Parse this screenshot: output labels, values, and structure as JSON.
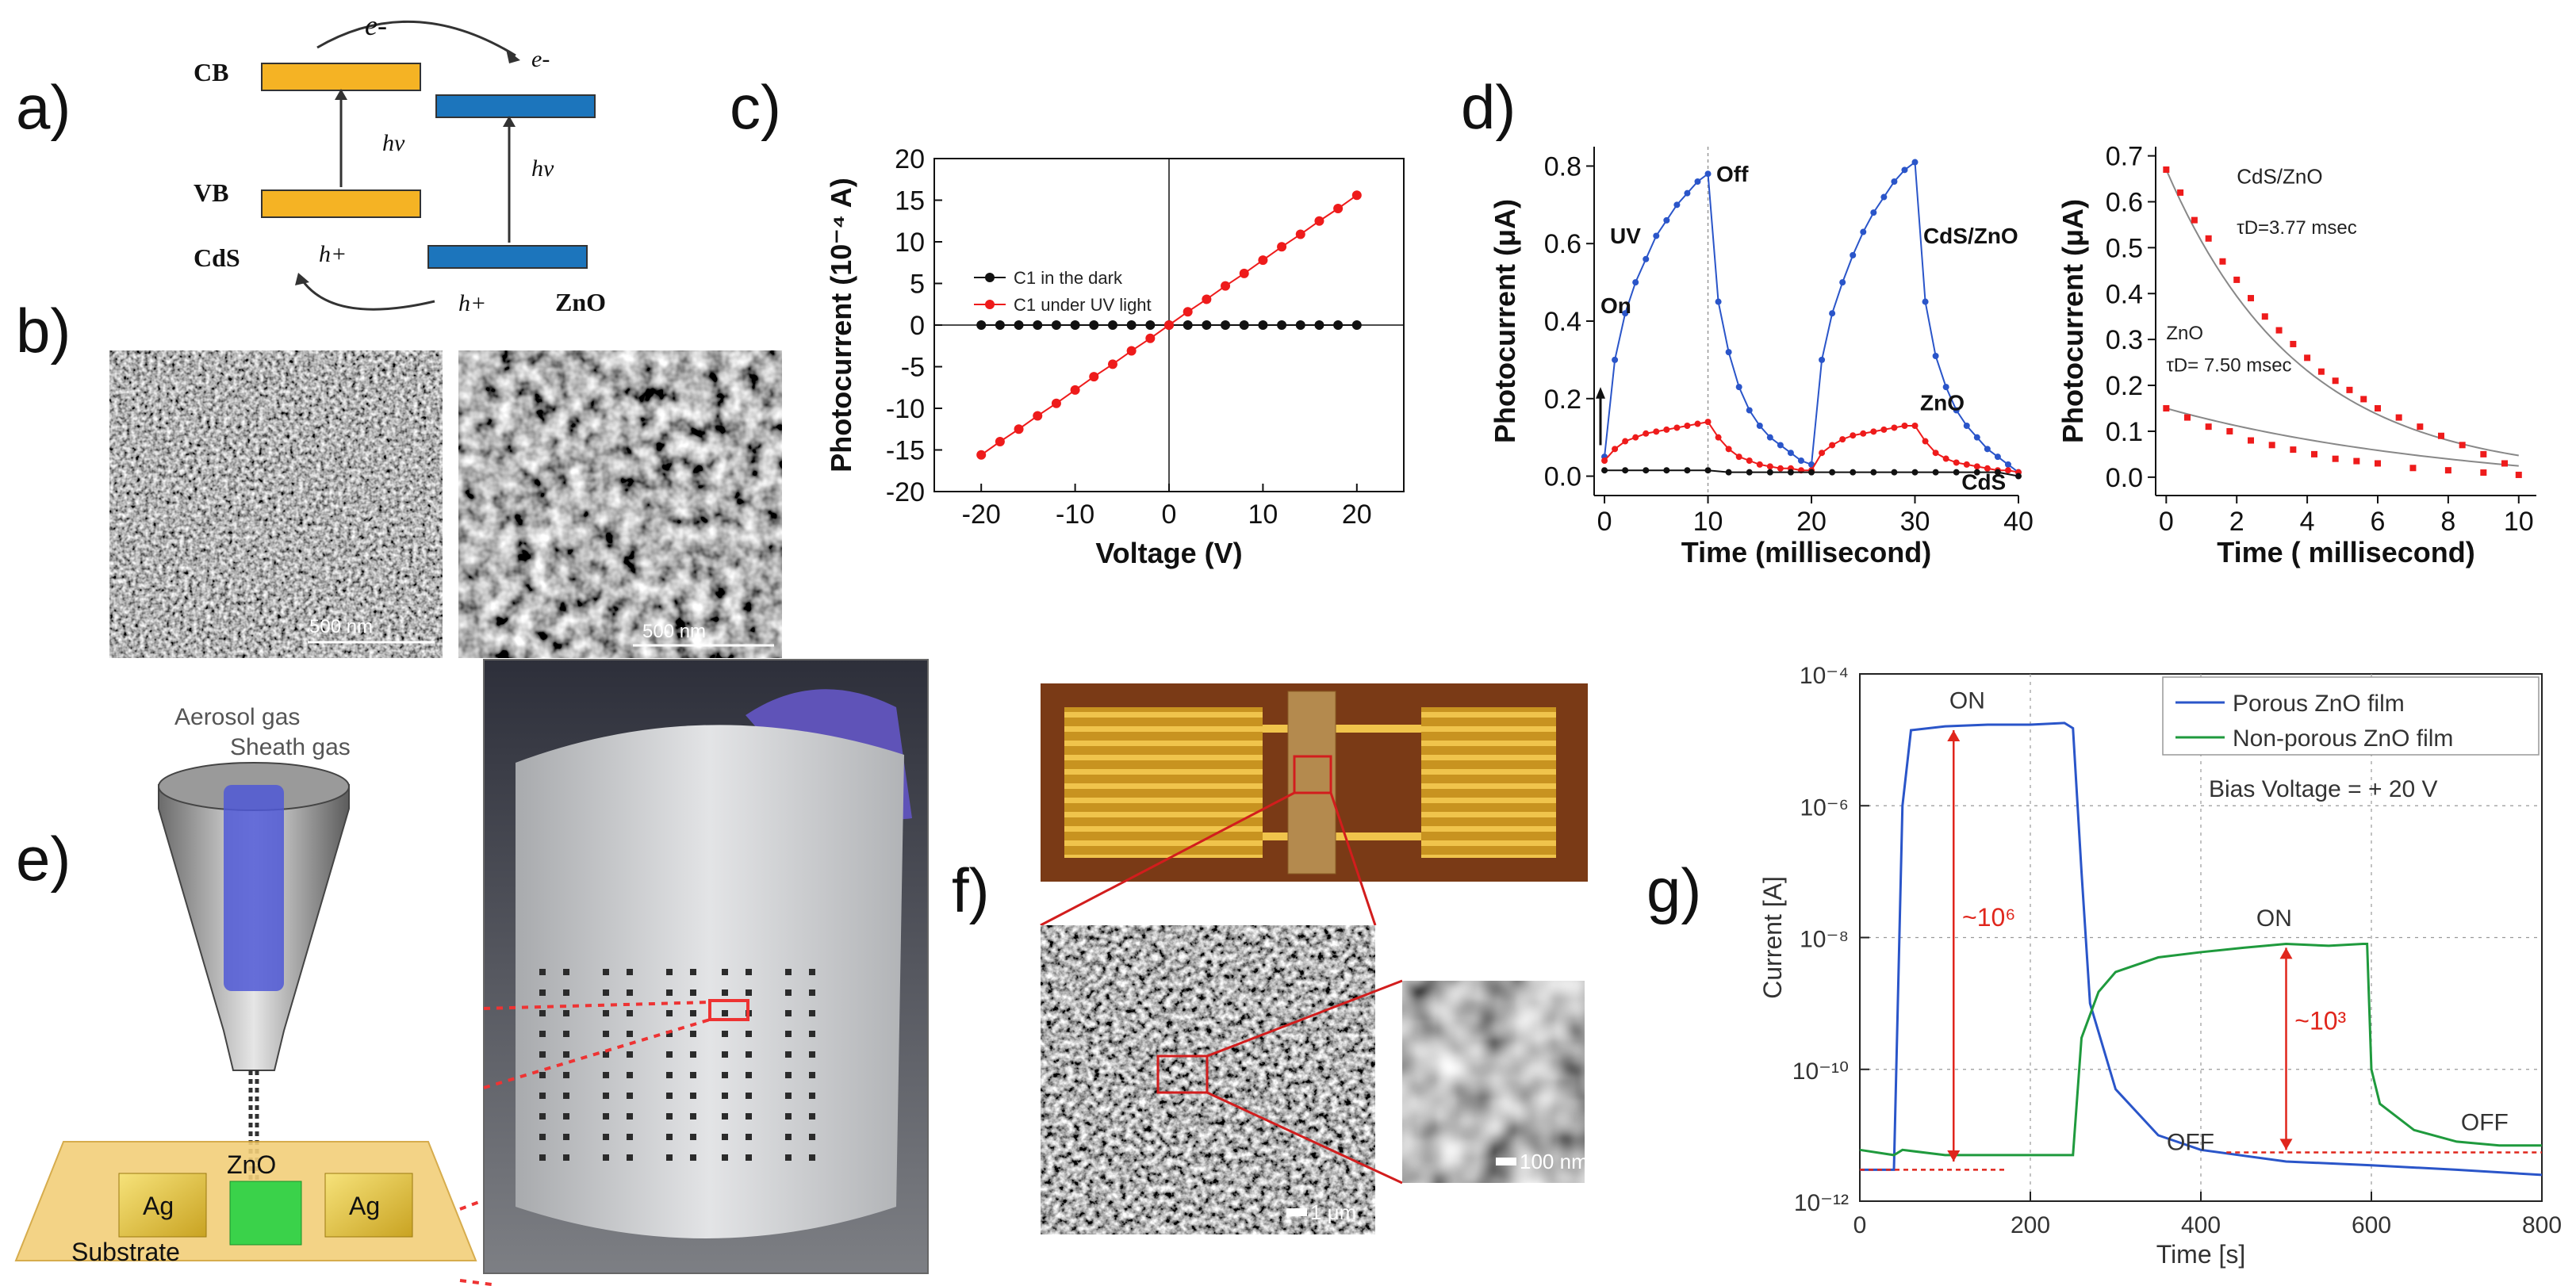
{
  "panels": {
    "a": "a)",
    "b": "b)",
    "c": "c)",
    "d": "d)",
    "e": "e)",
    "f": "f)",
    "g": "g)"
  },
  "panel_a": {
    "cb": "CB",
    "vb": "VB",
    "cds": "CdS",
    "zno": "ZnO",
    "electron_top": "e-",
    "electron_right": "e-",
    "hv_left": "hv",
    "hv_right": "hv",
    "hole_left": "h+",
    "hole_right": "h+"
  },
  "panel_b": {
    "scale_left": "500 nm",
    "scale_right": "500 nm"
  },
  "panel_e": {
    "aerosol": "Aerosol gas",
    "sheath": "Sheath gas",
    "zno": "ZnO",
    "ag_left": "Ag",
    "ag_right": "Ag",
    "substrate": "Substrate"
  },
  "panel_f": {
    "scale_large": "1 μm",
    "scale_small": "100 nm"
  },
  "colors": {
    "dark": "#111111",
    "uv": "#ee1b1b",
    "blue": "#2a55c9",
    "green": "#1f9a3d",
    "red_annot": "#e0261c",
    "cb_orange": "#f5b324",
    "zno_blue": "#1c75bc"
  },
  "chart_data": [
    {
      "id": "c",
      "type": "scatter",
      "xlabel": "Voltage (V)",
      "ylabel": "Photocurrent (10⁻⁴ A)",
      "xlim": [
        -25,
        25
      ],
      "ylim": [
        -20,
        20
      ],
      "xticks": [
        "-20",
        "-10",
        "0",
        "10",
        "20"
      ],
      "yticks": [
        "-20",
        "-15",
        "-10",
        "-5",
        "0",
        "5",
        "10",
        "15",
        "20"
      ],
      "legend_position": "left",
      "series": [
        {
          "name": "C1 in the dark",
          "color": "#111111",
          "x": [
            -20,
            -18,
            -16,
            -14,
            -12,
            -10,
            -8,
            -6,
            -4,
            -2,
            0,
            2,
            4,
            6,
            8,
            10,
            12,
            14,
            16,
            18,
            20
          ],
          "y": [
            0,
            0,
            0,
            0,
            0,
            0,
            0,
            0,
            0,
            0,
            0,
            0,
            0,
            0,
            0,
            0,
            0,
            0,
            0,
            0,
            0
          ]
        },
        {
          "name": "C1 under UV light",
          "color": "#ee1b1b",
          "x": [
            -20,
            -18,
            -16,
            -14,
            -12,
            -10,
            -8,
            -6,
            -4,
            -2,
            0,
            2,
            4,
            6,
            8,
            10,
            12,
            14,
            16,
            18,
            20
          ],
          "y": [
            -15.6,
            -14.0,
            -12.5,
            -10.9,
            -9.4,
            -7.8,
            -6.2,
            -4.7,
            -3.1,
            -1.6,
            0,
            1.6,
            3.1,
            4.7,
            6.2,
            7.8,
            9.4,
            10.9,
            12.5,
            14.0,
            15.6
          ]
        }
      ]
    },
    {
      "id": "d1",
      "type": "line",
      "xlabel": "Time (millisecond)",
      "ylabel": "Photocurrent (μA)",
      "xlim": [
        -1,
        40
      ],
      "ylim": [
        -0.05,
        0.85
      ],
      "xticks": [
        "0",
        "10",
        "20",
        "30",
        "40"
      ],
      "yticks": [
        "0.0",
        "0.2",
        "0.4",
        "0.6",
        "0.8"
      ],
      "annotations": {
        "uv": "UV",
        "on": "On",
        "off": "Off",
        "cds_zno": "CdS/ZnO",
        "zno": "ZnO",
        "cds": "CdS"
      },
      "series": [
        {
          "name": "CdS/ZnO",
          "color": "#2a55c9",
          "x": [
            0,
            1,
            2,
            3,
            4,
            5,
            6,
            7,
            8,
            9,
            10,
            11,
            12,
            13,
            14,
            15,
            16,
            17,
            18,
            19,
            20,
            21,
            22,
            23,
            24,
            25,
            26,
            27,
            28,
            29,
            30,
            31,
            32,
            33,
            34,
            35,
            36,
            37,
            38,
            39,
            40
          ],
          "y": [
            0.05,
            0.3,
            0.42,
            0.5,
            0.56,
            0.62,
            0.66,
            0.7,
            0.73,
            0.76,
            0.78,
            0.45,
            0.32,
            0.23,
            0.17,
            0.13,
            0.1,
            0.08,
            0.06,
            0.04,
            0.03,
            0.3,
            0.42,
            0.5,
            0.57,
            0.63,
            0.68,
            0.72,
            0.76,
            0.79,
            0.81,
            0.45,
            0.31,
            0.23,
            0.17,
            0.13,
            0.1,
            0.07,
            0.05,
            0.03,
            0.01
          ]
        },
        {
          "name": "ZnO",
          "color": "#ee1b1b",
          "x": [
            0,
            1,
            2,
            3,
            4,
            5,
            6,
            7,
            8,
            9,
            10,
            11,
            12,
            13,
            14,
            15,
            16,
            17,
            18,
            19,
            20,
            21,
            22,
            23,
            24,
            25,
            26,
            27,
            28,
            29,
            30,
            31,
            32,
            33,
            34,
            35,
            36,
            37,
            38,
            39,
            40
          ],
          "y": [
            0.04,
            0.07,
            0.09,
            0.1,
            0.11,
            0.115,
            0.12,
            0.125,
            0.13,
            0.135,
            0.14,
            0.1,
            0.07,
            0.05,
            0.04,
            0.03,
            0.025,
            0.02,
            0.02,
            0.015,
            0.015,
            0.06,
            0.08,
            0.095,
            0.105,
            0.11,
            0.115,
            0.12,
            0.125,
            0.13,
            0.13,
            0.09,
            0.06,
            0.045,
            0.035,
            0.03,
            0.025,
            0.02,
            0.015,
            0.015,
            0.01
          ]
        },
        {
          "name": "CdS",
          "color": "#111111",
          "x": [
            0,
            2,
            4,
            6,
            8,
            10,
            12,
            14,
            16,
            18,
            20,
            22,
            24,
            26,
            28,
            30,
            32,
            34,
            36,
            38,
            40
          ],
          "y": [
            0.015,
            0.015,
            0.015,
            0.015,
            0.015,
            0.015,
            0.01,
            0.01,
            0.01,
            0.01,
            0.01,
            0.01,
            0.01,
            0.01,
            0.01,
            0.01,
            0.01,
            0.01,
            0.01,
            0.01,
            0.0
          ]
        }
      ]
    },
    {
      "id": "d2",
      "type": "scatter",
      "xlabel": "Time ( millisecond)",
      "ylabel": "Photocurrent (μA)",
      "xlim": [
        -0.3,
        10.5
      ],
      "ylim": [
        -0.04,
        0.72
      ],
      "xticks": [
        "0",
        "2",
        "4",
        "6",
        "8",
        "10"
      ],
      "yticks": [
        "0.0",
        "0.1",
        "0.2",
        "0.3",
        "0.4",
        "0.5",
        "0.6",
        "0.7"
      ],
      "annotations": {
        "cds_zno": "CdS/ZnO",
        "tau1": "τD=3.77 msec",
        "zno": "ZnO",
        "tau2": "τD= 7.50 msec"
      },
      "series": [
        {
          "name": "CdS/ZnO",
          "color": "#ee1b1b",
          "x": [
            0,
            0.4,
            0.8,
            1.2,
            1.6,
            2.0,
            2.4,
            2.8,
            3.2,
            3.6,
            4.0,
            4.4,
            4.8,
            5.2,
            5.6,
            6.0,
            6.6,
            7.2,
            7.8,
            8.4,
            9.0,
            9.6
          ],
          "y": [
            0.67,
            0.62,
            0.56,
            0.52,
            0.47,
            0.43,
            0.39,
            0.35,
            0.32,
            0.29,
            0.26,
            0.23,
            0.21,
            0.19,
            0.17,
            0.15,
            0.13,
            0.11,
            0.09,
            0.07,
            0.05,
            0.03
          ]
        },
        {
          "name": "ZnO",
          "color": "#ee1b1b",
          "x": [
            0,
            0.6,
            1.2,
            1.8,
            2.4,
            3.0,
            3.6,
            4.2,
            4.8,
            5.4,
            6.0,
            7.0,
            8.0,
            9.0,
            10.0
          ],
          "y": [
            0.15,
            0.13,
            0.11,
            0.1,
            0.08,
            0.07,
            0.06,
            0.05,
            0.04,
            0.035,
            0.03,
            0.02,
            0.015,
            0.01,
            0.005
          ]
        }
      ]
    },
    {
      "id": "g",
      "type": "line",
      "xlabel": "Time [s]",
      "ylabel": "Current [A]",
      "xlim": [
        0,
        800
      ],
      "ylim": [
        1e-12,
        0.0001
      ],
      "yscale": "log",
      "grid": true,
      "xticks": [
        "0",
        "200",
        "400",
        "600",
        "800"
      ],
      "yticks": [
        "10⁻¹²",
        "10⁻¹⁰",
        "10⁻⁸",
        "10⁻⁶",
        "10⁻⁴"
      ],
      "legend_position": "top-right",
      "annotations": {
        "bias": "Bias Voltage = + 20 V",
        "on1": "ON",
        "on2": "ON",
        "off1": "OFF",
        "off2": "OFF",
        "ratio1": "~10⁶",
        "ratio2": "~10³"
      },
      "series": [
        {
          "name": "Porous ZnO film",
          "color": "#2a55c9",
          "x": [
            0,
            40,
            50,
            60,
            100,
            150,
            200,
            240,
            250,
            260,
            270,
            300,
            350,
            400,
            500,
            600,
            700,
            800
          ],
          "y": [
            3e-12,
            3e-12,
            1e-06,
            1.4e-05,
            1.6e-05,
            1.7e-05,
            1.7e-05,
            1.8e-05,
            1.5e-05,
            1e-07,
            1e-09,
            5e-11,
            1e-11,
            6e-12,
            4e-12,
            3.5e-12,
            3e-12,
            2.5e-12
          ]
        },
        {
          "name": "Non-porous ZnO film",
          "color": "#1f9a3d",
          "x": [
            0,
            40,
            50,
            100,
            150,
            200,
            240,
            250,
            260,
            280,
            300,
            350,
            400,
            450,
            500,
            550,
            590,
            595,
            600,
            610,
            650,
            700,
            750,
            800
          ],
          "y": [
            6e-12,
            5e-12,
            6e-12,
            5e-12,
            5e-12,
            5e-12,
            5e-12,
            5e-12,
            3e-10,
            1.5e-09,
            3e-09,
            5e-09,
            6e-09,
            7e-09,
            8e-09,
            7.5e-09,
            8e-09,
            8e-09,
            1e-10,
            3e-11,
            1.2e-11,
            8e-12,
            7e-12,
            7e-12
          ]
        }
      ]
    }
  ]
}
